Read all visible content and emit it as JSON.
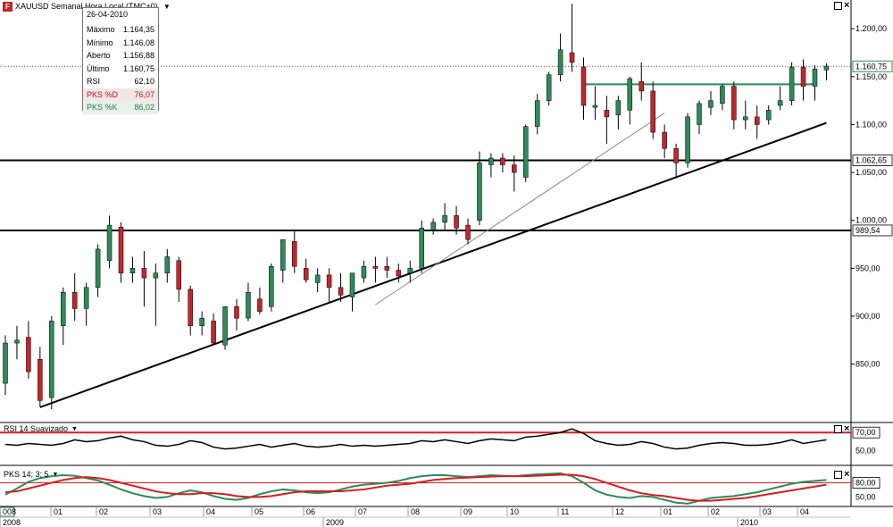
{
  "window": {
    "title": "XAUUSD Semanal Hora Local (TMC+0)",
    "logo_text": "F"
  },
  "info_box": {
    "date": "26-04-2010",
    "rows": [
      {
        "label": "Máximo",
        "value": "1.164,35",
        "color": "#000000"
      },
      {
        "label": "Mínimo",
        "value": "1.146,08",
        "color": "#000000"
      },
      {
        "label": "Aberto",
        "value": "1.156,88",
        "color": "#000000"
      },
      {
        "label": "Último",
        "value": "1.160,75",
        "color": "#000000"
      },
      {
        "label": "RSI",
        "value": "62,10",
        "color": "#000000"
      },
      {
        "label": "PKS %D",
        "value": "76,07",
        "color": "#b0182a"
      },
      {
        "label": "PKS %K",
        "value": "86,02",
        "color": "#2a7a4a"
      }
    ]
  },
  "panels": {
    "rsi_label": "RSI 14 Suavizado",
    "pks_label": "PKS 14; 3; 5"
  },
  "colors": {
    "up": "#2e8b57",
    "down": "#c0272d",
    "rsi_line": "#000000",
    "pks_k": "#2e8b57",
    "pks_d": "#d21f26",
    "level_red": "#d21f26"
  },
  "chart_data": [
    {
      "type": "candlestick",
      "title": "XAUUSD Semanal Hora Local (TMC+0)",
      "y_ticks": [
        "850,00",
        "900,00",
        "950,00",
        "1.000,00",
        "1.050,00",
        "1.100,00",
        "1.150,00",
        "1.200,00"
      ],
      "ylim": [
        790,
        1230
      ],
      "x_tick_labels": [
        "008",
        "01",
        "02",
        "03",
        "04",
        "05",
        "06",
        "07",
        "08",
        "09",
        "10",
        "11",
        "12",
        "01",
        "02",
        "03",
        "04"
      ],
      "x_year_labels": [
        "2008",
        "2009",
        "2010"
      ],
      "horizontal_levels": [
        {
          "value": 1062.65,
          "label": "1.062,65"
        },
        {
          "value": 989.54,
          "label": "989,54"
        }
      ],
      "last_price": {
        "value": 1160.75,
        "label": "1.160,75"
      },
      "candles": [
        {
          "o": 830,
          "h": 880,
          "l": 818,
          "c": 872
        },
        {
          "o": 872,
          "h": 890,
          "l": 855,
          "c": 875
        },
        {
          "o": 878,
          "h": 895,
          "l": 835,
          "c": 842
        },
        {
          "o": 855,
          "h": 868,
          "l": 805,
          "c": 812
        },
        {
          "o": 815,
          "h": 900,
          "l": 803,
          "c": 895
        },
        {
          "o": 890,
          "h": 930,
          "l": 870,
          "c": 925
        },
        {
          "o": 925,
          "h": 945,
          "l": 895,
          "c": 908
        },
        {
          "o": 908,
          "h": 935,
          "l": 890,
          "c": 930
        },
        {
          "o": 930,
          "h": 975,
          "l": 920,
          "c": 970
        },
        {
          "o": 958,
          "h": 1005,
          "l": 950,
          "c": 995
        },
        {
          "o": 993,
          "h": 998,
          "l": 935,
          "c": 945
        },
        {
          "o": 945,
          "h": 962,
          "l": 935,
          "c": 950
        },
        {
          "o": 950,
          "h": 968,
          "l": 910,
          "c": 940
        },
        {
          "o": 940,
          "h": 955,
          "l": 890,
          "c": 945
        },
        {
          "o": 945,
          "h": 970,
          "l": 935,
          "c": 962
        },
        {
          "o": 958,
          "h": 962,
          "l": 915,
          "c": 928
        },
        {
          "o": 928,
          "h": 932,
          "l": 880,
          "c": 890
        },
        {
          "o": 890,
          "h": 905,
          "l": 880,
          "c": 898
        },
        {
          "o": 895,
          "h": 903,
          "l": 870,
          "c": 872
        },
        {
          "o": 870,
          "h": 910,
          "l": 865,
          "c": 910
        },
        {
          "o": 910,
          "h": 918,
          "l": 885,
          "c": 898
        },
        {
          "o": 898,
          "h": 935,
          "l": 895,
          "c": 925
        },
        {
          "o": 918,
          "h": 930,
          "l": 902,
          "c": 905
        },
        {
          "o": 910,
          "h": 955,
          "l": 905,
          "c": 952
        },
        {
          "o": 948,
          "h": 980,
          "l": 935,
          "c": 980
        },
        {
          "o": 978,
          "h": 990,
          "l": 945,
          "c": 952
        },
        {
          "o": 950,
          "h": 960,
          "l": 935,
          "c": 938
        },
        {
          "o": 935,
          "h": 950,
          "l": 925,
          "c": 943
        },
        {
          "o": 943,
          "h": 950,
          "l": 915,
          "c": 930
        },
        {
          "o": 930,
          "h": 945,
          "l": 915,
          "c": 922
        },
        {
          "o": 920,
          "h": 945,
          "l": 905,
          "c": 945
        },
        {
          "o": 940,
          "h": 958,
          "l": 935,
          "c": 952
        },
        {
          "o": 952,
          "h": 962,
          "l": 935,
          "c": 950
        },
        {
          "o": 952,
          "h": 962,
          "l": 940,
          "c": 948
        },
        {
          "o": 948,
          "h": 955,
          "l": 935,
          "c": 942
        },
        {
          "o": 945,
          "h": 958,
          "l": 935,
          "c": 950
        },
        {
          "o": 950,
          "h": 1000,
          "l": 945,
          "c": 992
        },
        {
          "o": 990,
          "h": 1002,
          "l": 985,
          "c": 998
        },
        {
          "o": 998,
          "h": 1018,
          "l": 990,
          "c": 1005
        },
        {
          "o": 1005,
          "h": 1015,
          "l": 985,
          "c": 992
        },
        {
          "o": 995,
          "h": 1002,
          "l": 975,
          "c": 980
        },
        {
          "o": 1000,
          "h": 1072,
          "l": 995,
          "c": 1060
        },
        {
          "o": 1058,
          "h": 1070,
          "l": 1045,
          "c": 1065
        },
        {
          "o": 1065,
          "h": 1070,
          "l": 1050,
          "c": 1058
        },
        {
          "o": 1058,
          "h": 1068,
          "l": 1030,
          "c": 1050
        },
        {
          "o": 1045,
          "h": 1100,
          "l": 1040,
          "c": 1098
        },
        {
          "o": 1098,
          "h": 1132,
          "l": 1090,
          "c": 1125
        },
        {
          "o": 1125,
          "h": 1155,
          "l": 1120,
          "c": 1152
        },
        {
          "o": 1152,
          "h": 1195,
          "l": 1145,
          "c": 1178
        },
        {
          "o": 1175,
          "h": 1226,
          "l": 1155,
          "c": 1165
        },
        {
          "o": 1160,
          "h": 1170,
          "l": 1105,
          "c": 1120
        },
        {
          "o": 1118,
          "h": 1140,
          "l": 1105,
          "c": 1120
        },
        {
          "o": 1115,
          "h": 1130,
          "l": 1080,
          "c": 1108
        },
        {
          "o": 1110,
          "h": 1130,
          "l": 1095,
          "c": 1125
        },
        {
          "o": 1115,
          "h": 1150,
          "l": 1100,
          "c": 1148
        },
        {
          "o": 1145,
          "h": 1165,
          "l": 1125,
          "c": 1135
        },
        {
          "o": 1135,
          "h": 1145,
          "l": 1085,
          "c": 1092
        },
        {
          "o": 1092,
          "h": 1100,
          "l": 1065,
          "c": 1075
        },
        {
          "o": 1075,
          "h": 1080,
          "l": 1045,
          "c": 1060
        },
        {
          "o": 1060,
          "h": 1112,
          "l": 1055,
          "c": 1108
        },
        {
          "o": 1100,
          "h": 1125,
          "l": 1090,
          "c": 1122
        },
        {
          "o": 1118,
          "h": 1135,
          "l": 1110,
          "c": 1125
        },
        {
          "o": 1122,
          "h": 1142,
          "l": 1115,
          "c": 1140
        },
        {
          "o": 1140,
          "h": 1145,
          "l": 1095,
          "c": 1105
        },
        {
          "o": 1105,
          "h": 1125,
          "l": 1095,
          "c": 1108
        },
        {
          "o": 1108,
          "h": 1120,
          "l": 1085,
          "c": 1100
        },
        {
          "o": 1105,
          "h": 1120,
          "l": 1100,
          "c": 1115
        },
        {
          "o": 1120,
          "h": 1140,
          "l": 1115,
          "c": 1125
        },
        {
          "o": 1125,
          "h": 1165,
          "l": 1120,
          "c": 1160
        },
        {
          "o": 1160,
          "h": 1168,
          "l": 1125,
          "c": 1140
        },
        {
          "o": 1140,
          "h": 1162,
          "l": 1125,
          "c": 1158
        },
        {
          "o": 1157,
          "h": 1164,
          "l": 1146,
          "c": 1161
        }
      ]
    },
    {
      "type": "line",
      "name": "RSI 14 Suavizado",
      "ylim": [
        35,
        80
      ],
      "y_ticks": [
        "70,00",
        "50,00"
      ],
      "reference_level": 70,
      "values": [
        57,
        56,
        58,
        57,
        56,
        58,
        62,
        60,
        61,
        64,
        66,
        62,
        60,
        56,
        55,
        57,
        61,
        59,
        54,
        52,
        53,
        55,
        57,
        54,
        56,
        58,
        55,
        54,
        55,
        57,
        55,
        56,
        55,
        56,
        57,
        58,
        61,
        60,
        62,
        60,
        58,
        61,
        63,
        62,
        61,
        65,
        66,
        68,
        70,
        74,
        69,
        61,
        58,
        56,
        57,
        60,
        58,
        54,
        52,
        53,
        56,
        58,
        59,
        58,
        56,
        56,
        57,
        59,
        62,
        58,
        60,
        62
      ],
      "color": "#000000"
    },
    {
      "type": "line",
      "name": "PKS 14; 3; 5",
      "ylim": [
        30,
        115
      ],
      "y_ticks": [
        "80,00",
        "50,00"
      ],
      "reference_level": 80,
      "series": [
        {
          "name": "PKS %K",
          "color": "#2e8b57",
          "values": [
            55,
            68,
            82,
            90,
            94,
            96,
            95,
            90,
            85,
            76,
            66,
            58,
            52,
            48,
            50,
            58,
            64,
            60,
            52,
            46,
            44,
            48,
            56,
            62,
            66,
            64,
            60,
            58,
            60,
            66,
            72,
            76,
            78,
            80,
            84,
            90,
            94,
            96,
            96,
            94,
            92,
            94,
            96,
            95,
            94,
            96,
            98,
            99,
            100,
            94,
            80,
            64,
            55,
            50,
            48,
            52,
            50,
            44,
            38,
            36,
            42,
            48,
            50,
            52,
            56,
            60,
            66,
            72,
            78,
            82,
            84,
            86
          ]
        },
        {
          "name": "PKS %D",
          "color": "#d21f26",
          "values": [
            60,
            62,
            68,
            74,
            80,
            86,
            90,
            92,
            90,
            86,
            80,
            74,
            68,
            62,
            58,
            56,
            56,
            58,
            58,
            56,
            52,
            50,
            50,
            52,
            56,
            60,
            62,
            62,
            62,
            62,
            64,
            66,
            70,
            74,
            76,
            78,
            82,
            86,
            88,
            90,
            91,
            92,
            93,
            94,
            94,
            94,
            95,
            96,
            97,
            97,
            94,
            88,
            80,
            72,
            64,
            58,
            54,
            52,
            48,
            44,
            42,
            42,
            44,
            46,
            48,
            52,
            56,
            60,
            64,
            68,
            72,
            76
          ]
        }
      ]
    }
  ]
}
